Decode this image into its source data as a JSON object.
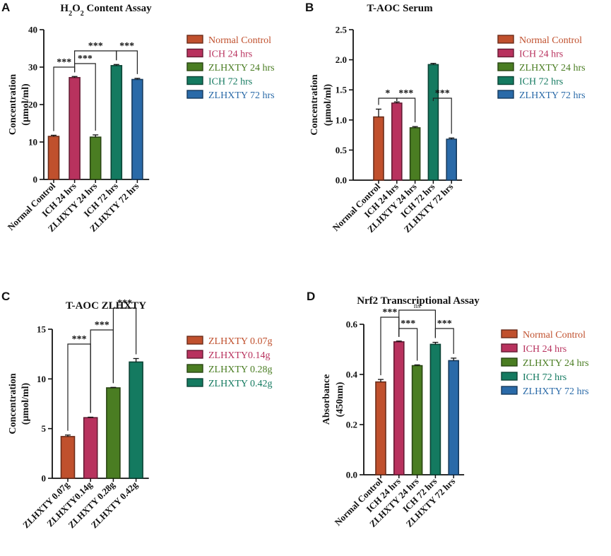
{
  "chart_data": [
    {
      "panel": "A",
      "type": "bar",
      "title": "H2O2 Content Assay",
      "ylabel": "Concentration (µmol/ml)",
      "ylabel_lines": [
        "Concentration",
        "(µmol/ml)"
      ],
      "ylim": [
        0,
        40
      ],
      "yticks": [
        0,
        10,
        20,
        30,
        40
      ],
      "categories": [
        "Normal Control",
        "ICH 24 hrs",
        "ZLHXTY 24 hrs",
        "ICH 72 hrs",
        "ZLHXTY 72 hrs"
      ],
      "values": [
        11.5,
        27.2,
        11.3,
        30.4,
        26.7
      ],
      "errors": [
        0.3,
        0.3,
        0.6,
        0.3,
        0.3
      ],
      "colors": [
        "#c0502d",
        "#b8325e",
        "#4a7d22",
        "#147a60",
        "#2a6aa8"
      ],
      "legend": [
        "Normal Control",
        "ICH 24 hrs",
        "ZLHXTY 24 hrs",
        "ICH 72 hrs",
        "ZLHXTY 72 hrs"
      ],
      "significance": [
        {
          "from": 0,
          "to": 1,
          "label": "***"
        },
        {
          "from": 1,
          "to": 2,
          "label": "***"
        },
        {
          "from": 1,
          "to": 3,
          "label": "***"
        },
        {
          "from": 3,
          "to": 4,
          "label": "***"
        }
      ]
    },
    {
      "panel": "B",
      "type": "bar",
      "title": "T-AOC Serum",
      "ylabel": "Concentration (µmol/ml)",
      "ylabel_lines": [
        "Concentration",
        "(µmol/ml)"
      ],
      "ylim": [
        0,
        2.5
      ],
      "yticks": [
        "0.0",
        "0.5",
        "1.0",
        "1.5",
        "2.0",
        "2.5"
      ],
      "categories": [
        "Normal Control",
        "ICH 24 hrs",
        "ZLHXTY 24 hrs",
        "ICH 72 hrs",
        "ZLHXTY 72 hrs"
      ],
      "values": [
        1.05,
        1.28,
        0.87,
        1.92,
        0.68
      ],
      "errors": [
        0.13,
        0.02,
        0.02,
        0.02,
        0.02
      ],
      "colors": [
        "#c0502d",
        "#b8325e",
        "#4a7d22",
        "#147a60",
        "#2a6aa8"
      ],
      "legend": [
        "Normal Control",
        "ICH 24 hrs",
        "ZLHXTY 24 hrs",
        "ICH 72 hrs",
        "ZLHXTY 72 hrs"
      ],
      "significance": [
        {
          "from": 0,
          "to": 1,
          "label": "*"
        },
        {
          "from": 1,
          "to": 2,
          "label": "***"
        },
        {
          "from": 3,
          "to": 4,
          "label": "***"
        }
      ]
    },
    {
      "panel": "C",
      "type": "bar",
      "title": "T-AOC ZLHXTY",
      "ylabel": "Concentration (µmol/ml)",
      "ylabel_lines": [
        "Concentration",
        "(µmol/ml)"
      ],
      "ylim": [
        0,
        15
      ],
      "yticks": [
        0,
        5,
        10,
        15
      ],
      "categories": [
        "ZLHXTY 0.07g",
        "ZLHXTY0.14g",
        "ZLHXTY 0.28g",
        "ZLHXTY 0.42g"
      ],
      "values": [
        4.2,
        6.1,
        9.1,
        11.7
      ],
      "errors": [
        0.15,
        0.05,
        0.05,
        0.35
      ],
      "colors": [
        "#c0502d",
        "#b8325e",
        "#4a7d22",
        "#147a60"
      ],
      "legend": [
        "ZLHXTY 0.07g",
        "ZLHXTY0.14g",
        "ZLHXTY 0.28g",
        "ZLHXTY 0.42g"
      ],
      "significance": [
        {
          "from": 0,
          "to": 1,
          "label": "***"
        },
        {
          "from": 1,
          "to": 2,
          "label": "***"
        },
        {
          "from": 2,
          "to": 3,
          "label": "***"
        }
      ]
    },
    {
      "panel": "D",
      "type": "bar",
      "title": "Nrf2 Transcriptional Assay",
      "ylabel": "Absorbance (450nm)",
      "ylabel_lines": [
        "Absorbance",
        "(450nm)"
      ],
      "ylim": [
        0,
        0.6
      ],
      "yticks": [
        "0.0",
        "0.2",
        "0.4",
        "0.6"
      ],
      "categories": [
        "Normal Control",
        "ICH 24 hrs",
        "ZLHXTY 24 hrs",
        "ICH 72 hrs",
        "ZLHXTY 72 hrs"
      ],
      "values": [
        0.37,
        0.53,
        0.435,
        0.52,
        0.455
      ],
      "errors": [
        0.01,
        0.003,
        0.003,
        0.008,
        0.01
      ],
      "colors": [
        "#c0502d",
        "#b8325e",
        "#4a7d22",
        "#147a60",
        "#2a6aa8"
      ],
      "legend": [
        "Normal Control",
        "ICH 24 hrs",
        "ZLHXTY 24 hrs",
        "ICH 72 hrs",
        "ZLHXTY 72 hrs"
      ],
      "significance": [
        {
          "from": 0,
          "to": 1,
          "label": "***"
        },
        {
          "from": 1,
          "to": 2,
          "label": "***"
        },
        {
          "from": 1,
          "to": 3,
          "label": "ns"
        },
        {
          "from": 3,
          "to": 4,
          "label": "***"
        }
      ]
    }
  ]
}
